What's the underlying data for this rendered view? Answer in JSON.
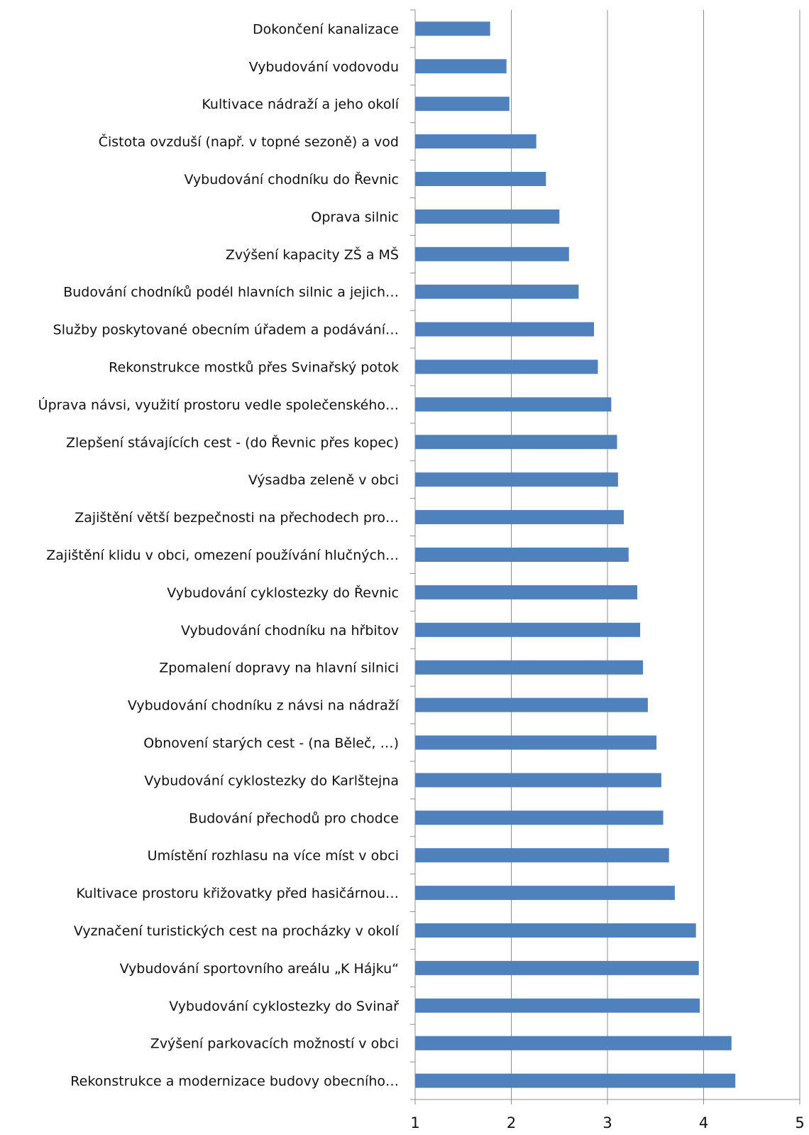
{
  "chart_data": {
    "type": "bar",
    "orientation": "horizontal",
    "title": "",
    "xlabel": "",
    "ylabel": "",
    "xlim": [
      1,
      5
    ],
    "x_ticks": [
      "1",
      "2",
      "3",
      "4",
      "5"
    ],
    "grid": "vertical",
    "bar_color": "#4f81bd",
    "categories": [
      "Dokončení kanalizace",
      "Vybudování vodovodu",
      "Kultivace nádraží a jeho okolí",
      "Čistota ovzduší (např. v topné sezoně) a vod",
      "Vybudování chodníku do Řevnic",
      "Oprava silnic",
      "Zvýšení kapacity ZŠ a MŠ",
      "Budování chodníků podél hlavních silnic a jejich…",
      "Služby poskytované obecním úřadem a podávání…",
      "Rekonstrukce mostků přes Svinařský potok",
      "Úprava návsi, využití prostoru vedle společenského…",
      "Zlepšení stávajících cest - (do Řevnic přes kopec)",
      "Výsadba zeleně v obci",
      "Zajištění větší bezpečnosti na přechodech pro…",
      "Zajištění klidu v obci, omezení používání hlučných…",
      "Vybudování cyklostezky do Řevnic",
      "Vybudování chodníku na hřbitov",
      "Zpomalení dopravy na hlavní silnici",
      "Vybudování chodníku z návsi na nádraží",
      "Obnovení starých cest - (na Běleč, …)",
      "Vybudování cyklostezky do Karlštejna",
      "Budování přechodů pro chodce",
      "Umístění rozhlasu na více míst v obci",
      "Kultivace prostoru křižovatky před hasičárnou…",
      "Vyznačení turistických cest na procházky v okolí",
      "Vybudování sportovního areálu „K Hájku“",
      "Vybudování cyklostezky do Svinař",
      "Zvýšení parkovacích možností v obci",
      "Rekonstrukce a modernizace budovy obecního…"
    ],
    "values": [
      1.78,
      1.95,
      1.98,
      2.26,
      2.36,
      2.5,
      2.6,
      2.7,
      2.86,
      2.9,
      3.04,
      3.1,
      3.11,
      3.17,
      3.22,
      3.31,
      3.34,
      3.37,
      3.42,
      3.51,
      3.56,
      3.58,
      3.64,
      3.7,
      3.92,
      3.95,
      3.96,
      4.29,
      4.33
    ]
  }
}
